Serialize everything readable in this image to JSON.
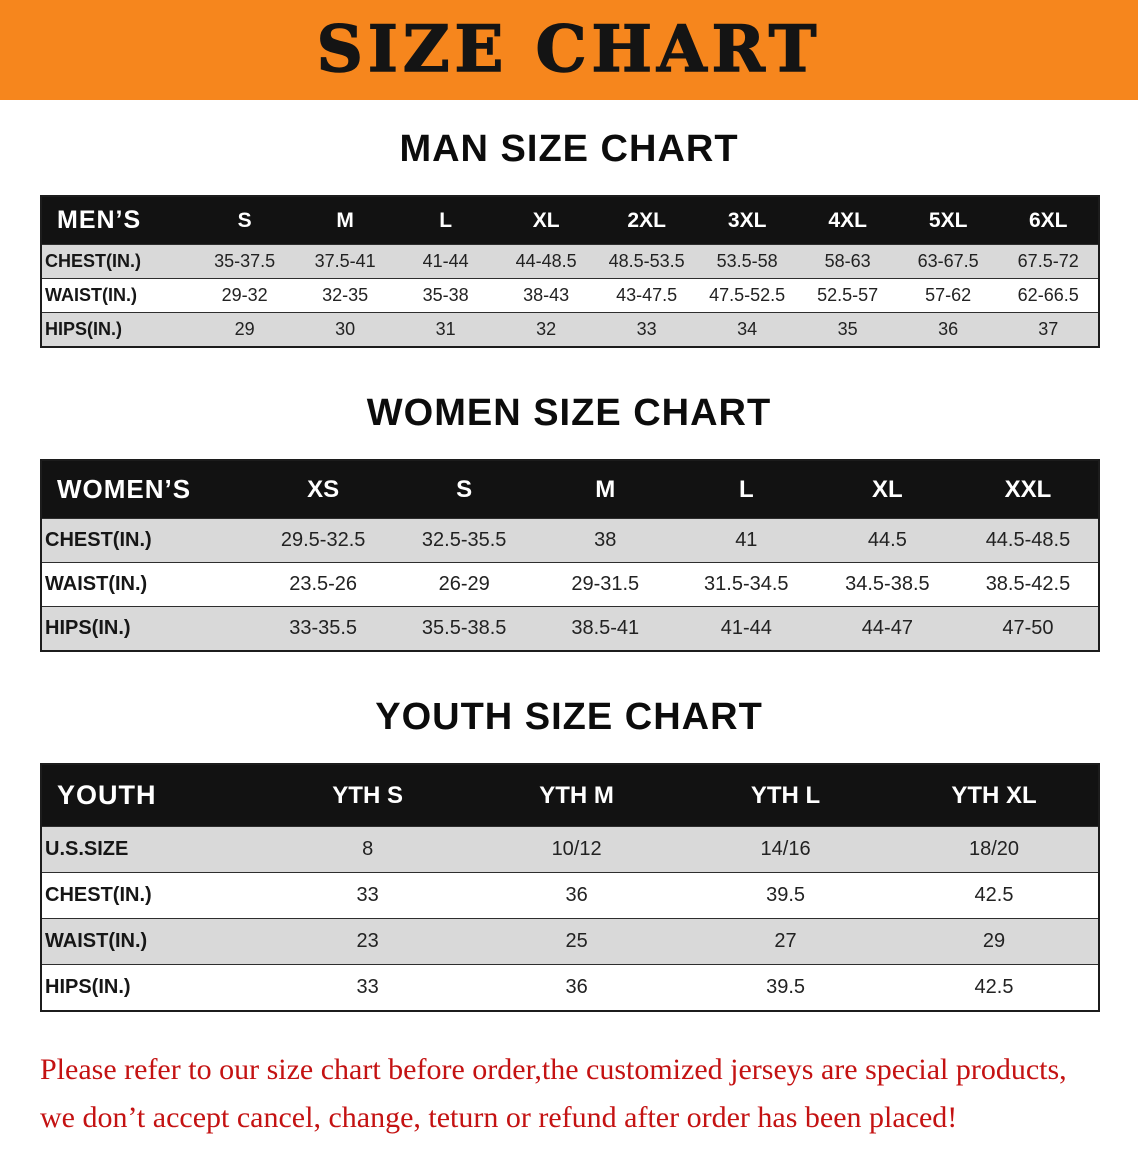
{
  "banner": {
    "title": "SIZE CHART"
  },
  "colors": {
    "banner_bg": "#f6861d",
    "table_header_bg": "#121212",
    "table_header_text": "#ffffff",
    "row_alt_gray": "#d9d9d9",
    "disclaimer_red": "#c41212"
  },
  "sections": [
    {
      "heading": "MAN SIZE CHART",
      "table": {
        "header": [
          "MEN’S",
          "S",
          "M",
          "L",
          "XL",
          "2XL",
          "3XL",
          "4XL",
          "5XL",
          "6XL"
        ],
        "rows": [
          {
            "label": "CHEST(IN.)",
            "values": [
              "35-37.5",
              "37.5-41",
              "41-44",
              "44-48.5",
              "48.5-53.5",
              "53.5-58",
              "58-63",
              "63-67.5",
              "67.5-72"
            ]
          },
          {
            "label": "WAIST(IN.)",
            "values": [
              "29-32",
              "32-35",
              "35-38",
              "38-43",
              "43-47.5",
              "47.5-52.5",
              "52.5-57",
              "57-62",
              "62-66.5"
            ]
          },
          {
            "label": "HIPS(IN.)",
            "values": [
              "29",
              "30",
              "31",
              "32",
              "33",
              "34",
              "35",
              "36",
              "37"
            ]
          }
        ]
      }
    },
    {
      "heading": "WOMEN SIZE CHART",
      "table": {
        "header": [
          "WOMEN’S",
          "XS",
          "S",
          "M",
          "L",
          "XL",
          "XXL"
        ],
        "rows": [
          {
            "label": "CHEST(IN.)",
            "values": [
              "29.5-32.5",
              "32.5-35.5",
              "38",
              "41",
              "44.5",
              "44.5-48.5"
            ]
          },
          {
            "label": "WAIST(IN.)",
            "values": [
              "23.5-26",
              "26-29",
              "29-31.5",
              "31.5-34.5",
              "34.5-38.5",
              "38.5-42.5"
            ]
          },
          {
            "label": "HIPS(IN.)",
            "values": [
              "33-35.5",
              "35.5-38.5",
              "38.5-41",
              "41-44",
              "44-47",
              "47-50"
            ]
          }
        ]
      }
    },
    {
      "heading": "YOUTH SIZE CHART",
      "table": {
        "header": [
          "YOUTH",
          "YTH S",
          "YTH M",
          "YTH L",
          "YTH XL"
        ],
        "rows": [
          {
            "label": "U.S.SIZE",
            "values": [
              "8",
              "10/12",
              "14/16",
              "18/20"
            ]
          },
          {
            "label": "CHEST(IN.)",
            "values": [
              "33",
              "36",
              "39.5",
              "42.5"
            ]
          },
          {
            "label": "WAIST(IN.)",
            "values": [
              "23",
              "25",
              "27",
              "29"
            ]
          },
          {
            "label": "HIPS(IN.)",
            "values": [
              "33",
              "36",
              "39.5",
              "42.5"
            ]
          }
        ]
      }
    }
  ],
  "disclaimer": {
    "line1": "Please refer to our size chart before order,the customized jerseys are special products,",
    "line2": "we don’t accept cancel, change, teturn or refund after order has been placed!"
  }
}
